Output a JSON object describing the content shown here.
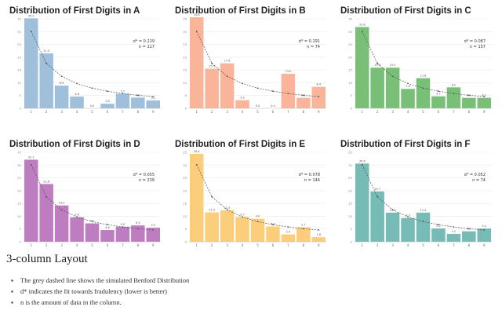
{
  "layout_heading": "3-column Layout",
  "notes": [
    "The grey dashed line shows the simulated Benford Distribution",
    "d* indicates the fit towards fradulency (lower is better)",
    "n is the amount of data in the column."
  ],
  "colors": {
    "benford_line": "#555555",
    "panel_A": "#9fbfdb",
    "panel_B": "#f9b49a",
    "panel_C": "#79bf78",
    "panel_D": "#bf7dc1",
    "panel_E": "#fcce7c",
    "panel_F": "#76bbb6"
  },
  "chart_data": [
    {
      "type": "bar",
      "title": "Distribution of First Digits in A",
      "categories": [
        "1",
        "2",
        "3",
        "4",
        "5",
        "6",
        "7",
        "8",
        "9"
      ],
      "values": [
        35.2,
        21.5,
        8.9,
        4.6,
        0.0,
        1.8,
        5.7,
        4.2,
        3.1
      ],
      "benford": [
        30.1,
        17.6,
        12.5,
        9.7,
        7.9,
        6.7,
        5.8,
        5.1,
        4.6
      ],
      "ylim": [
        0,
        35
      ],
      "stats": [
        "d* = 0.229",
        "n = 117"
      ]
    },
    {
      "type": "bar",
      "title": "Distribution of First Digits in B",
      "categories": [
        "1",
        "2",
        "3",
        "4",
        "5",
        "6",
        "7",
        "8",
        "9"
      ],
      "values": [
        35.6,
        15.5,
        17.6,
        3.2,
        0.0,
        0.0,
        13.5,
        4.1,
        8.4
      ],
      "benford": [
        30.1,
        17.6,
        12.5,
        9.7,
        7.9,
        6.7,
        5.8,
        5.1,
        4.6
      ],
      "ylim": [
        0,
        35
      ],
      "stats": [
        "d* = 0.291",
        "n = 74"
      ]
    },
    {
      "type": "bar",
      "title": "Distribution of First Digits in C",
      "categories": [
        "1",
        "2",
        "3",
        "4",
        "5",
        "6",
        "7",
        "8",
        "9"
      ],
      "values": [
        31.8,
        15.9,
        15.9,
        7.6,
        11.8,
        4.7,
        8.2,
        4.1,
        4.1
      ],
      "benford": [
        30.1,
        17.6,
        12.5,
        9.7,
        7.9,
        6.7,
        5.8,
        5.1,
        4.6
      ],
      "ylim": [
        0,
        35
      ],
      "stats": [
        "d* = 0.087",
        "n = 157"
      ]
    },
    {
      "type": "bar",
      "title": "Distribution of First Digits in D",
      "categories": [
        "1",
        "2",
        "3",
        "4",
        "5",
        "6",
        "7",
        "8",
        "9"
      ],
      "values": [
        32.1,
        22.6,
        14.2,
        9.6,
        7.2,
        4.6,
        5.9,
        6.4,
        5.5
      ],
      "benford": [
        30.1,
        17.6,
        12.5,
        9.7,
        7.9,
        6.7,
        5.8,
        5.1,
        4.6
      ],
      "ylim": [
        0,
        35
      ],
      "stats": [
        "d* = 0.055",
        "n = 239"
      ]
    },
    {
      "type": "bar",
      "title": "Distribution of First Digits in E",
      "categories": [
        "1",
        "2",
        "3",
        "4",
        "5",
        "6",
        "7",
        "8",
        "9"
      ],
      "values": [
        34.4,
        11.5,
        12.3,
        9.7,
        9.0,
        6.0,
        2.9,
        5.7,
        1.8
      ],
      "benford": [
        30.1,
        17.6,
        12.5,
        9.7,
        7.9,
        6.7,
        5.8,
        5.1,
        4.6
      ],
      "ylim": [
        0,
        35
      ],
      "stats": [
        "d* = 0.078",
        "n = 144"
      ]
    },
    {
      "type": "bar",
      "title": "Distribution of First Digits in F",
      "categories": [
        "1",
        "2",
        "3",
        "4",
        "5",
        "6",
        "7",
        "8",
        "9"
      ],
      "values": [
        30.6,
        19.7,
        11.4,
        9.3,
        11.4,
        5.2,
        3.1,
        4.1,
        5.2
      ],
      "benford": [
        30.1,
        17.6,
        12.5,
        9.7,
        7.9,
        6.7,
        5.8,
        5.1,
        4.6
      ],
      "ylim": [
        0,
        35
      ],
      "stats": [
        "d* = 0.052",
        "n = 74"
      ]
    }
  ]
}
